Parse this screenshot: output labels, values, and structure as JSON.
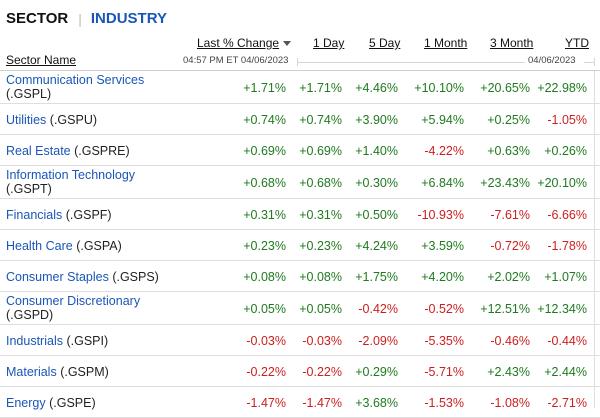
{
  "tabs": {
    "sector": "SECTOR",
    "separator": "|",
    "industry": "INDUSTRY"
  },
  "columns": {
    "name": "Sector Name",
    "last_pct_change": "Last % Change",
    "one_day": "1 Day",
    "five_day": "5 Day",
    "one_month": "1 Month",
    "three_month": "3 Month",
    "ytd": "YTD"
  },
  "subheaders": {
    "timestamp": "04:57 PM ET 04/06/2023",
    "range_end": "04/06/2023"
  },
  "rows": [
    {
      "name": "Communication Services",
      "symbol": "(.GSPL)",
      "last": "+1.71%",
      "d1": "+1.71%",
      "d5": "+4.46%",
      "m1": "+10.10%",
      "m3": "+20.65%",
      "ytd": "+22.98%"
    },
    {
      "name": "Utilities",
      "symbol": "(.GSPU)",
      "last": "+0.74%",
      "d1": "+0.74%",
      "d5": "+3.90%",
      "m1": "+5.94%",
      "m3": "+0.25%",
      "ytd": "-1.05%"
    },
    {
      "name": "Real Estate",
      "symbol": "(.GSPRE)",
      "last": "+0.69%",
      "d1": "+0.69%",
      "d5": "+1.40%",
      "m1": "-4.22%",
      "m3": "+0.63%",
      "ytd": "+0.26%"
    },
    {
      "name": "Information Technology",
      "symbol": "(.GSPT)",
      "last": "+0.68%",
      "d1": "+0.68%",
      "d5": "+0.30%",
      "m1": "+6.84%",
      "m3": "+23.43%",
      "ytd": "+20.10%"
    },
    {
      "name": "Financials",
      "symbol": "(.GSPF)",
      "last": "+0.31%",
      "d1": "+0.31%",
      "d5": "+0.50%",
      "m1": "-10.93%",
      "m3": "-7.61%",
      "ytd": "-6.66%"
    },
    {
      "name": "Health Care",
      "symbol": "(.GSPA)",
      "last": "+0.23%",
      "d1": "+0.23%",
      "d5": "+4.24%",
      "m1": "+3.59%",
      "m3": "-0.72%",
      "ytd": "-1.78%"
    },
    {
      "name": "Consumer Staples",
      "symbol": "(.GSPS)",
      "last": "+0.08%",
      "d1": "+0.08%",
      "d5": "+1.75%",
      "m1": "+4.20%",
      "m3": "+2.02%",
      "ytd": "+1.07%"
    },
    {
      "name": "Consumer Discretionary",
      "symbol": "(.GSPD)",
      "last": "+0.05%",
      "d1": "+0.05%",
      "d5": "-0.42%",
      "m1": "-0.52%",
      "m3": "+12.51%",
      "ytd": "+12.34%"
    },
    {
      "name": "Industrials",
      "symbol": "(.GSPI)",
      "last": "-0.03%",
      "d1": "-0.03%",
      "d5": "-2.09%",
      "m1": "-5.35%",
      "m3": "-0.46%",
      "ytd": "-0.44%"
    },
    {
      "name": "Materials",
      "symbol": "(.GSPM)",
      "last": "-0.22%",
      "d1": "-0.22%",
      "d5": "+0.29%",
      "m1": "-5.71%",
      "m3": "+2.43%",
      "ytd": "+2.44%"
    },
    {
      "name": "Energy",
      "symbol": "(.GSPE)",
      "last": "-1.47%",
      "d1": "-1.47%",
      "d5": "+3.68%",
      "m1": "-1.53%",
      "m3": "-1.08%",
      "ytd": "-2.71%"
    }
  ],
  "colors": {
    "positive": "#1f7a1f",
    "negative": "#cc1f1f",
    "link": "#1a56b8"
  }
}
